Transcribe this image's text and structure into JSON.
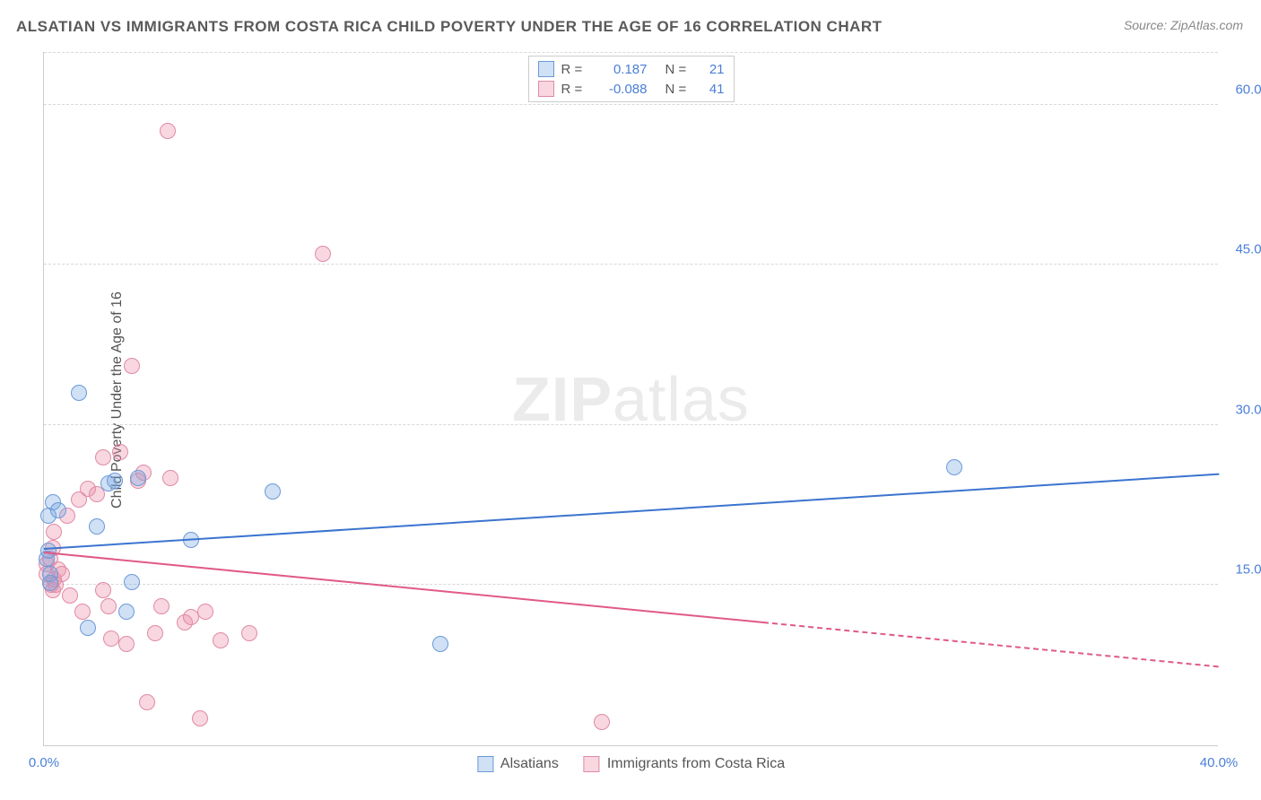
{
  "title": "ALSATIAN VS IMMIGRANTS FROM COSTA RICA CHILD POVERTY UNDER THE AGE OF 16 CORRELATION CHART",
  "source": "Source: ZipAtlas.com",
  "ylabel": "Child Poverty Under the Age of 16",
  "watermark": {
    "bold": "ZIP",
    "rest": "atlas"
  },
  "chart": {
    "type": "scatter",
    "xlim": [
      0,
      40
    ],
    "ylim": [
      0,
      65
    ],
    "yticks": [
      {
        "v": 15,
        "label": "15.0%"
      },
      {
        "v": 30,
        "label": "30.0%"
      },
      {
        "v": 45,
        "label": "45.0%"
      },
      {
        "v": 60,
        "label": "60.0%"
      }
    ],
    "xticks": [
      {
        "v": 0,
        "label": "0.0%"
      },
      {
        "v": 40,
        "label": "40.0%"
      }
    ],
    "grid_color": "#d8d8d8",
    "background_color": "#ffffff"
  },
  "series": {
    "a": {
      "name": "Alsatians",
      "fill": "rgba(120,165,225,0.35)",
      "stroke": "#6a9ad8",
      "line_color": "#3b74cf",
      "marker_radius": 9,
      "R": "0.187",
      "N": "21",
      "trend": {
        "x1": 0,
        "y1": 18.3,
        "x2": 40,
        "y2": 25.3,
        "solid_to_x": 40
      },
      "points": [
        [
          0.1,
          17.5
        ],
        [
          0.15,
          18.2
        ],
        [
          0.15,
          21.5
        ],
        [
          0.2,
          16.0
        ],
        [
          0.2,
          15.2
        ],
        [
          0.3,
          22.8
        ],
        [
          0.5,
          22.0
        ],
        [
          1.2,
          33.0
        ],
        [
          1.5,
          11.0
        ],
        [
          1.8,
          20.5
        ],
        [
          2.2,
          24.5
        ],
        [
          2.4,
          24.8
        ],
        [
          2.8,
          12.5
        ],
        [
          3.0,
          15.3
        ],
        [
          3.2,
          25.0
        ],
        [
          5.0,
          19.2
        ],
        [
          7.8,
          23.8
        ],
        [
          13.5,
          9.5
        ],
        [
          31.0,
          26.0
        ]
      ]
    },
    "b": {
      "name": "Immigrants from Costa Rica",
      "fill": "rgba(235,140,165,0.35)",
      "stroke": "#e08aa5",
      "line_color": "#e05a85",
      "marker_radius": 9,
      "R": "-0.088",
      "N": "41",
      "trend": {
        "x1": 0,
        "y1": 18.0,
        "x2": 40,
        "y2": 7.3,
        "solid_to_x": 24.5
      },
      "points": [
        [
          0.1,
          17.0
        ],
        [
          0.1,
          16.0
        ],
        [
          0.2,
          17.5
        ],
        [
          0.25,
          15.0
        ],
        [
          0.3,
          18.5
        ],
        [
          0.3,
          14.5
        ],
        [
          0.35,
          20.0
        ],
        [
          0.35,
          15.5
        ],
        [
          0.4,
          15.0
        ],
        [
          0.5,
          16.5
        ],
        [
          0.6,
          16.0
        ],
        [
          0.8,
          21.5
        ],
        [
          0.9,
          14.0
        ],
        [
          1.2,
          23.0
        ],
        [
          1.3,
          12.5
        ],
        [
          1.5,
          24.0
        ],
        [
          1.8,
          23.5
        ],
        [
          2.0,
          14.5
        ],
        [
          2.0,
          27.0
        ],
        [
          2.2,
          13.0
        ],
        [
          2.3,
          10.0
        ],
        [
          2.6,
          27.5
        ],
        [
          2.8,
          9.5
        ],
        [
          3.0,
          35.5
        ],
        [
          3.2,
          24.8
        ],
        [
          3.4,
          25.5
        ],
        [
          3.5,
          4.0
        ],
        [
          3.8,
          10.5
        ],
        [
          4.0,
          13.0
        ],
        [
          4.2,
          57.5
        ],
        [
          4.3,
          25.0
        ],
        [
          4.8,
          11.5
        ],
        [
          5.0,
          12.0
        ],
        [
          5.3,
          2.5
        ],
        [
          5.5,
          12.5
        ],
        [
          6.0,
          9.8
        ],
        [
          7.0,
          10.5
        ],
        [
          9.5,
          46.0
        ],
        [
          19.0,
          2.2
        ]
      ]
    }
  },
  "legend_top": {
    "r_label": "R =",
    "n_label": "N ="
  }
}
